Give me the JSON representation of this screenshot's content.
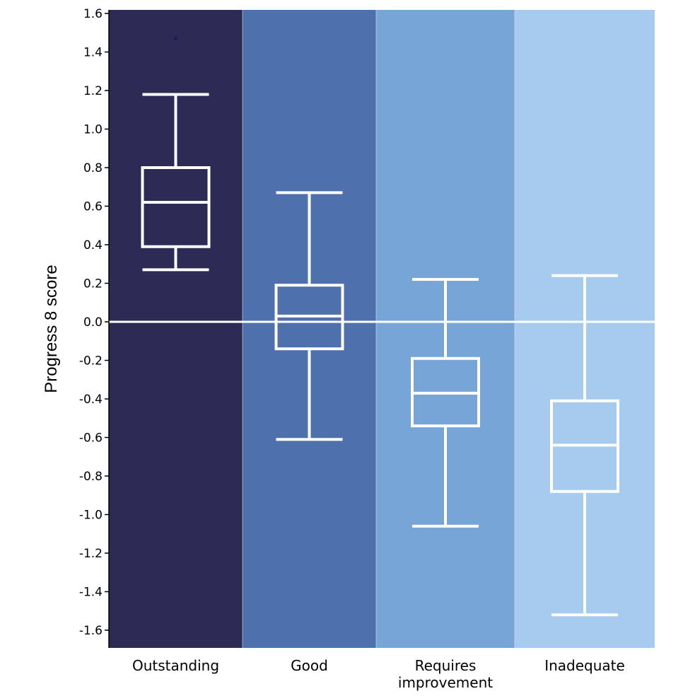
{
  "chart_data": {
    "type": "boxplot",
    "title": "",
    "ylabel": "Progress 8 score",
    "xlabel": "",
    "ylim": [
      -1.7,
      1.62
    ],
    "yticks": [
      1.6,
      1.4,
      1.2,
      1.0,
      0.8,
      0.6,
      0.4,
      0.2,
      0.0,
      -0.2,
      -0.4,
      -0.6,
      -0.8,
      -1.0,
      -1.2,
      -1.4,
      -1.6
    ],
    "ytick_labels": [
      "1.6",
      "1.4",
      "1.2",
      "1.0",
      "0.8",
      "0.6",
      "0.4",
      "0.2",
      "0.0",
      "-0.2",
      "-0.4",
      "-0.6",
      "-0.8",
      "-1.0",
      "-1.2",
      "-1.4",
      "-1.6"
    ],
    "reference_line": 0.0,
    "grid": false,
    "categories": [
      {
        "label_lines": [
          "Outstanding"
        ],
        "whisker_low": 0.27,
        "q1": 0.39,
        "median": 0.62,
        "q3": 0.8,
        "whisker_high": 1.18,
        "outliers": [
          1.47
        ],
        "background": "#2d2b55"
      },
      {
        "label_lines": [
          "Good"
        ],
        "whisker_low": -0.61,
        "q1": -0.14,
        "median": 0.03,
        "q3": 0.19,
        "whisker_high": 0.67,
        "outliers": [],
        "background": "#4e70ad"
      },
      {
        "label_lines": [
          "Requires",
          "improvement"
        ],
        "whisker_low": -1.06,
        "q1": -0.54,
        "median": -0.37,
        "q3": -0.19,
        "whisker_high": 0.22,
        "outliers": [],
        "background": "#77a5d7"
      },
      {
        "label_lines": [
          "Inadequate"
        ],
        "whisker_low": -1.52,
        "q1": -0.88,
        "median": -0.64,
        "q3": -0.41,
        "whisker_high": 0.24,
        "outliers": [],
        "background": "#a6cbee"
      }
    ],
    "colors": {
      "box": "#ffffff",
      "outlier": "#1a1a66",
      "reference_line": "#ffffff"
    }
  }
}
